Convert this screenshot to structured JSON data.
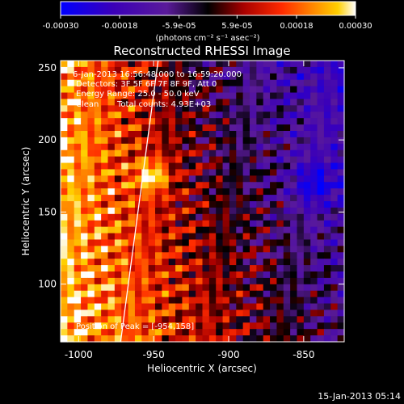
{
  "chart_data": {
    "type": "heatmap",
    "title": "Reconstructed RHESSI Image",
    "xlabel": "Heliocentric X (arcsec)",
    "ylabel": "Heliocentric Y (arcsec)",
    "xlim": [
      -1012,
      -823
    ],
    "ylim": [
      60,
      255
    ],
    "x_ticks": [
      "-1000",
      "-950",
      "-900",
      "-850"
    ],
    "x_tick_values": [
      -1000,
      -950,
      -900,
      -850
    ],
    "y_ticks": [
      "100",
      "150",
      "200",
      "250"
    ],
    "y_tick_values": [
      100,
      150,
      200,
      250
    ],
    "colorbar": {
      "ticks": [
        "-0.00030",
        "-0.00018",
        "-5.9e-05",
        "5.9e-05",
        "0.00018",
        "0.00030"
      ],
      "tick_values": [
        -0.0003,
        -0.00018,
        -5.9e-05,
        5.9e-05,
        0.00018,
        0.0003
      ],
      "range": [
        -0.0003,
        0.0003
      ],
      "colormap": [
        "#0000ff",
        "#3b00b8",
        "#5a1a9a",
        "#000000",
        "#a80000",
        "#ff2a00",
        "#ff8c00",
        "#ffd000",
        "#ffffff"
      ]
    },
    "annotations": {
      "time_range": "6-Jan-2013 16:56:48.000 to 16:59:20.000",
      "detectors": "Detectors: 3F 5F 6F 7F 8F 9F, Att 0",
      "energy_range": "Energy Range: 25.0 - 50.0 keV",
      "clean": "Clean",
      "total_counts": "Total counts: 4.93E+03",
      "peak": "Position of Peak = [-954,158]"
    },
    "peak": {
      "x": -954,
      "y": 158
    },
    "limb_line": [
      {
        "x": -972,
        "y": 60
      },
      {
        "x": -947,
        "y": 255
      }
    ],
    "grid_size": [
      42,
      44
    ],
    "structure": {
      "bright_region": "left and lower portion (positive flux, yellow-white)",
      "dim_region": "upper right (negative flux, purple-blue)"
    }
  },
  "colorbar_unit": "(photons cm⁻² s⁻¹ asec⁻²)",
  "footer": {
    "date": "15-Jan-2013 05:14"
  },
  "colors": {
    "background": "#000000",
    "text": "#ffffff",
    "limb": "#ffffff"
  }
}
